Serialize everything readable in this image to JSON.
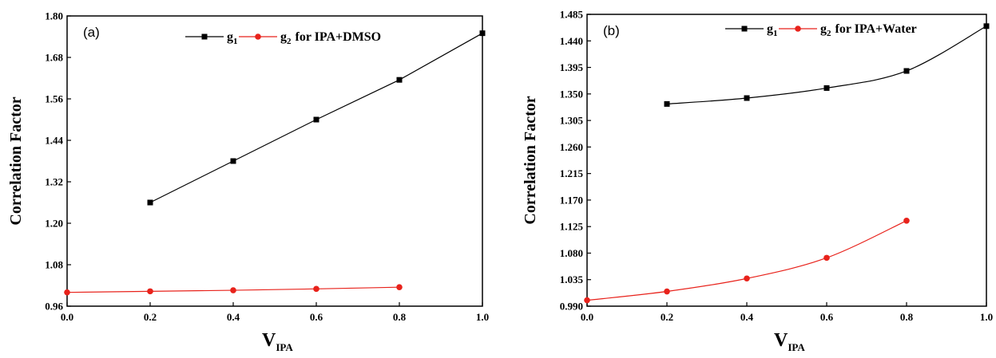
{
  "chart_data": [
    {
      "type": "line",
      "panel_label": "(a)",
      "xlabel": "V",
      "xlabel_sub": "IPA",
      "ylabel": "Correlation Factor",
      "xlim": [
        0.0,
        1.0
      ],
      "ylim": [
        0.96,
        1.8
      ],
      "xticks": [
        "0.0",
        "0.2",
        "0.4",
        "0.6",
        "0.8",
        "1.0"
      ],
      "yticks": [
        "0.96",
        "1.08",
        "1.20",
        "1.32",
        "1.44",
        "1.56",
        "1.68",
        "1.80"
      ],
      "legend": {
        "placement": "top-center",
        "suffix": "for IPA+DMSO"
      },
      "series": [
        {
          "name": "g",
          "sub": "1",
          "color": "#000000",
          "marker": "square",
          "x": [
            0.2,
            0.4,
            0.6,
            0.8,
            1.0
          ],
          "y": [
            1.26,
            1.38,
            1.5,
            1.615,
            1.75
          ]
        },
        {
          "name": "g",
          "sub": "2",
          "color": "#e8221b",
          "marker": "circle",
          "x": [
            0.0,
            0.2,
            0.4,
            0.6,
            0.8
          ],
          "y": [
            1.0,
            1.003,
            1.006,
            1.01,
            1.015
          ]
        }
      ]
    },
    {
      "type": "line",
      "panel_label": "(b)",
      "xlabel": "V",
      "xlabel_sub": "IPA",
      "ylabel": "Correlation Factor",
      "xlim": [
        0.0,
        1.0
      ],
      "ylim": [
        0.99,
        1.485
      ],
      "xticks": [
        "0.0",
        "0.2",
        "0.4",
        "0.6",
        "0.8",
        "1.0"
      ],
      "yticks": [
        "0.990",
        "1.035",
        "1.080",
        "1.125",
        "1.170",
        "1.215",
        "1.260",
        "1.305",
        "1.350",
        "1.395",
        "1.440",
        "1.485"
      ],
      "legend": {
        "placement": "top-center",
        "suffix": "for IPA+Water"
      },
      "series": [
        {
          "name": "g",
          "sub": "1",
          "color": "#000000",
          "marker": "square",
          "x": [
            0.2,
            0.4,
            0.6,
            0.8,
            1.0
          ],
          "y": [
            1.333,
            1.343,
            1.36,
            1.389,
            1.465
          ]
        },
        {
          "name": "g",
          "sub": "2",
          "color": "#e8221b",
          "marker": "circle",
          "x": [
            0.0,
            0.2,
            0.4,
            0.6,
            0.8
          ],
          "y": [
            1.0,
            1.015,
            1.037,
            1.072,
            1.135
          ]
        }
      ]
    }
  ]
}
